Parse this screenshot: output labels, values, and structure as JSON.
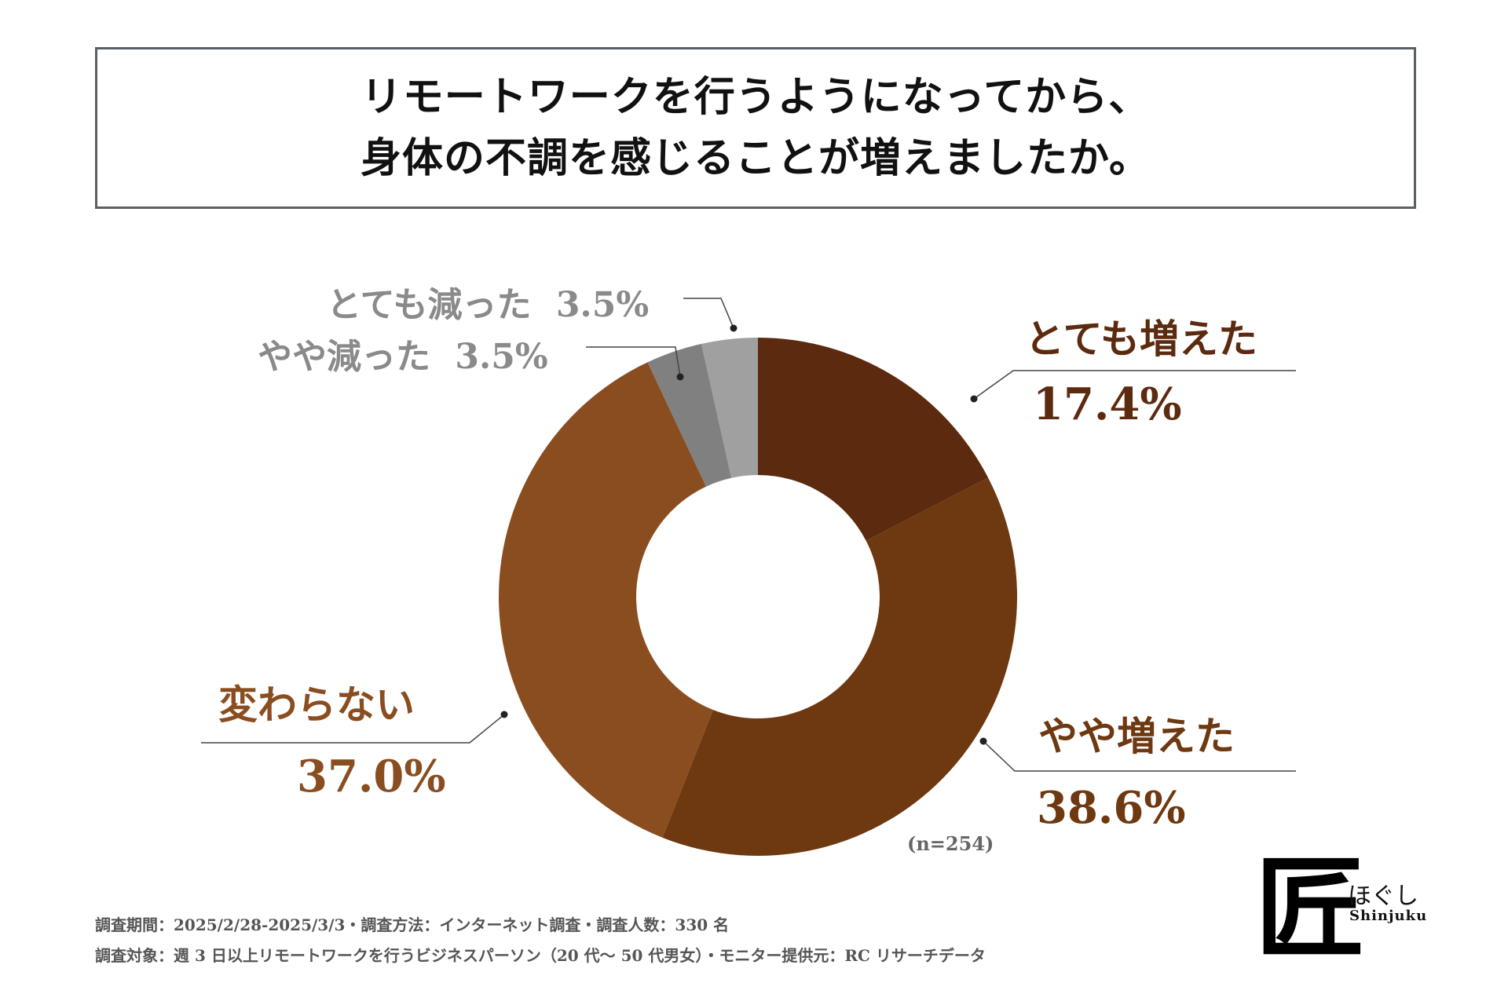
{
  "title": {
    "line1": "リモートワークを行うようになってから、",
    "line2": "身体の不調を感じることが増えましたか。"
  },
  "chart_data": {
    "type": "pie",
    "donut": true,
    "title": "リモートワークを行うようになってから、身体の不調を感じることが増えましたか。",
    "sample_size": "(n=254)",
    "slices": [
      {
        "label": "とても増えた",
        "value": 17.4,
        "pct_text": "17.4%",
        "color": "#5c2a0e"
      },
      {
        "label": "やや増えた",
        "value": 38.6,
        "pct_text": "38.6%",
        "color": "#6e3810"
      },
      {
        "label": "変わらない",
        "value": 37.0,
        "pct_text": "37.0%",
        "color": "#8a4d20"
      },
      {
        "label": "やや減った",
        "value": 3.5,
        "pct_text": "3.5%",
        "color": "#808080"
      },
      {
        "label": "とても減った",
        "value": 3.5,
        "pct_text": "3.5%",
        "color": "#a0a0a0"
      }
    ]
  },
  "footer": {
    "line1": "調査期間：2025/2/28-2025/3/3・調査方法：インターネット調査・調査人数：330 名",
    "line2": "調査対象：週 3 日以上リモートワークを行うビジネスパーソン（20 代～ 50 代男女）・モニター提供元：RC リサーチデータ"
  },
  "logo": {
    "glyph": "匠",
    "kana": "ほぐし",
    "sub": "Shinjuku"
  },
  "colors": {
    "label_dark": "#5c2a0e",
    "label_mid": "#8a4d20",
    "label_grey": "#8a8a8a",
    "leader": "#444444"
  }
}
